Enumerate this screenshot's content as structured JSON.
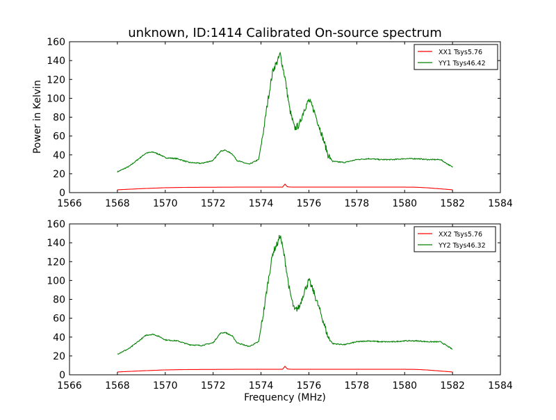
{
  "chart_data": [
    {
      "type": "line",
      "title": "unknown, ID:1414 Calibrated On-source spectrum",
      "xlabel": "",
      "ylabel": "Power in Kelvin",
      "xlim": [
        1566,
        1584
      ],
      "ylim": [
        0,
        160
      ],
      "xticks": [
        "1566",
        "1568",
        "1570",
        "1572",
        "1574",
        "1576",
        "1578",
        "1580",
        "1582",
        "1584"
      ],
      "yticks": [
        "0",
        "20",
        "40",
        "60",
        "80",
        "100",
        "120",
        "140",
        "160"
      ],
      "legend_position": "top-right",
      "series": [
        {
          "name": "XX1 Tsys5.76",
          "color": "#ff0000",
          "x": [
            1568,
            1569,
            1570,
            1571,
            1572,
            1573,
            1574,
            1574.6,
            1574.9,
            1575.0,
            1575.1,
            1575.3,
            1576,
            1577,
            1578,
            1579,
            1580,
            1580.5,
            1581,
            1581.5,
            1582
          ],
          "y": [
            3,
            4.2,
            5.2,
            5.6,
            5.7,
            5.8,
            5.8,
            5.8,
            5.8,
            9,
            6.2,
            5.8,
            5.8,
            5.8,
            5.8,
            5.8,
            5.8,
            5.7,
            5,
            4,
            3
          ]
        },
        {
          "name": "YY1 Tsys46.42",
          "color": "#008000",
          "x": [
            1568,
            1568.5,
            1569,
            1569.2,
            1569.5,
            1569.8,
            1570,
            1570.5,
            1571,
            1571.5,
            1572,
            1572.3,
            1572.5,
            1572.8,
            1573,
            1573.5,
            1573.9,
            1574.1,
            1574.3,
            1574.5,
            1574.7,
            1574.8,
            1575.0,
            1575.2,
            1575.4,
            1575.6,
            1575.8,
            1576.0,
            1576.2,
            1576.5,
            1576.8,
            1577,
            1577.5,
            1578,
            1578.5,
            1579,
            1579.5,
            1580,
            1580.5,
            1581,
            1581.5,
            1582
          ],
          "y": [
            22,
            28,
            38,
            42,
            43,
            40,
            37,
            36,
            32,
            31,
            34,
            44,
            45,
            41,
            34,
            30,
            35,
            65,
            100,
            130,
            140,
            147,
            122,
            88,
            68,
            72,
            88,
            98,
            88,
            65,
            40,
            33,
            32,
            35,
            36,
            35,
            35,
            36,
            36,
            35,
            35,
            27
          ]
        }
      ]
    },
    {
      "type": "line",
      "title": "",
      "xlabel": "Frequency (MHz)",
      "ylabel": "",
      "xlim": [
        1566,
        1584
      ],
      "ylim": [
        0,
        160
      ],
      "xticks": [
        "1566",
        "1568",
        "1570",
        "1572",
        "1574",
        "1576",
        "1578",
        "1580",
        "1582",
        "1584"
      ],
      "yticks": [
        "0",
        "20",
        "40",
        "60",
        "80",
        "100",
        "120",
        "140",
        "160"
      ],
      "legend_position": "top-right",
      "series": [
        {
          "name": "XX2 Tsys5.76",
          "color": "#ff0000",
          "x": [
            1568,
            1569,
            1570,
            1571,
            1572,
            1573,
            1574,
            1574.6,
            1574.9,
            1575.0,
            1575.1,
            1575.3,
            1576,
            1577,
            1578,
            1579,
            1580,
            1580.5,
            1581,
            1581.5,
            1582
          ],
          "y": [
            3,
            4.2,
            5.2,
            5.6,
            5.7,
            5.8,
            5.8,
            5.8,
            5.8,
            9,
            6.2,
            5.8,
            5.8,
            5.8,
            5.8,
            5.8,
            5.8,
            5.7,
            5,
            4,
            3
          ]
        },
        {
          "name": "YY2 Tsys46.32",
          "color": "#008000",
          "x": [
            1568,
            1568.5,
            1569,
            1569.2,
            1569.5,
            1569.8,
            1570,
            1570.5,
            1571,
            1571.5,
            1572,
            1572.3,
            1572.5,
            1572.8,
            1573,
            1573.5,
            1573.9,
            1574.1,
            1574.3,
            1574.5,
            1574.7,
            1574.8,
            1575.0,
            1575.2,
            1575.4,
            1575.6,
            1575.8,
            1576.0,
            1576.2,
            1576.5,
            1576.8,
            1577,
            1577.5,
            1578,
            1578.5,
            1579,
            1579.5,
            1580,
            1580.5,
            1581,
            1581.5,
            1582
          ],
          "y": [
            22,
            28,
            38,
            42,
            43,
            40,
            37,
            36,
            32,
            31,
            34,
            44,
            45,
            41,
            34,
            30,
            35,
            65,
            100,
            130,
            140,
            148,
            122,
            88,
            68,
            72,
            88,
            100,
            88,
            65,
            40,
            33,
            32,
            35,
            36,
            35,
            35,
            36,
            36,
            35,
            35,
            27
          ]
        }
      ]
    }
  ]
}
